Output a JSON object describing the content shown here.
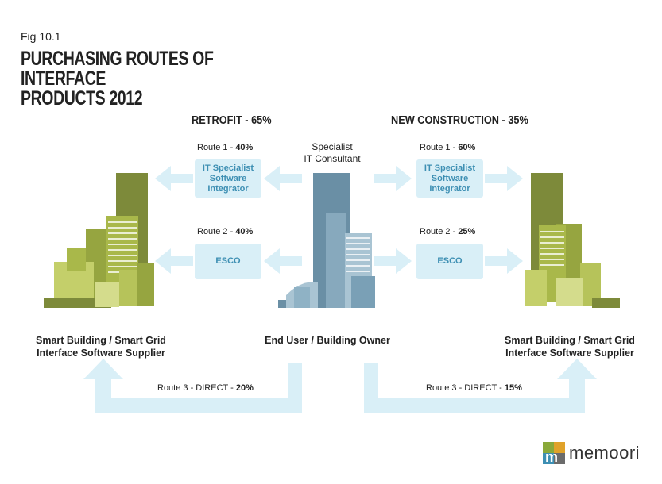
{
  "figure": {
    "fig_label": "Fig 10.1",
    "title_line1": "PURCHASING ROUTES OF INTERFACE",
    "title_line2": "PRODUCTS 2012"
  },
  "sections": {
    "retrofit": "RETROFIT - 65%",
    "new_construction": "NEW CONSTRUCTION - 35%"
  },
  "center": {
    "consultant_line1": "Specialist",
    "consultant_line2": "IT Consultant",
    "end_user": "End User / Building Owner"
  },
  "suppliers": {
    "left_line1": "Smart Building / Smart Grid",
    "left_line2": "Interface Software Supplier",
    "right_line1": "Smart Building / Smart Grid",
    "right_line2": "Interface Software Supplier"
  },
  "routes": {
    "retrofit": {
      "route1_label": "Route 1 - ",
      "route1_pct": "40%",
      "route2_label": "Route 2 - ",
      "route2_pct": "40%",
      "route3_label": "Route 3 - DIRECT - ",
      "route3_pct": "20%"
    },
    "new_construction": {
      "route1_label": "Route 1 - ",
      "route1_pct": "60%",
      "route2_label": "Route 2 - ",
      "route2_pct": "25%",
      "route3_label": "Route 3 - DIRECT - ",
      "route3_pct": "15%"
    }
  },
  "boxes": {
    "it_specialist_line1": "IT Specialist",
    "it_specialist_line2": "Software",
    "it_specialist_line3": "Integrator",
    "esco": "ESCO"
  },
  "logo": {
    "text": "memoori"
  },
  "colors": {
    "arrow": "#d9eff7",
    "box_text": "#3d8fb3",
    "left_building_dark": "#7d8a3a",
    "left_building_light": "#a9b84a",
    "center_building": "#6a8fa5"
  }
}
